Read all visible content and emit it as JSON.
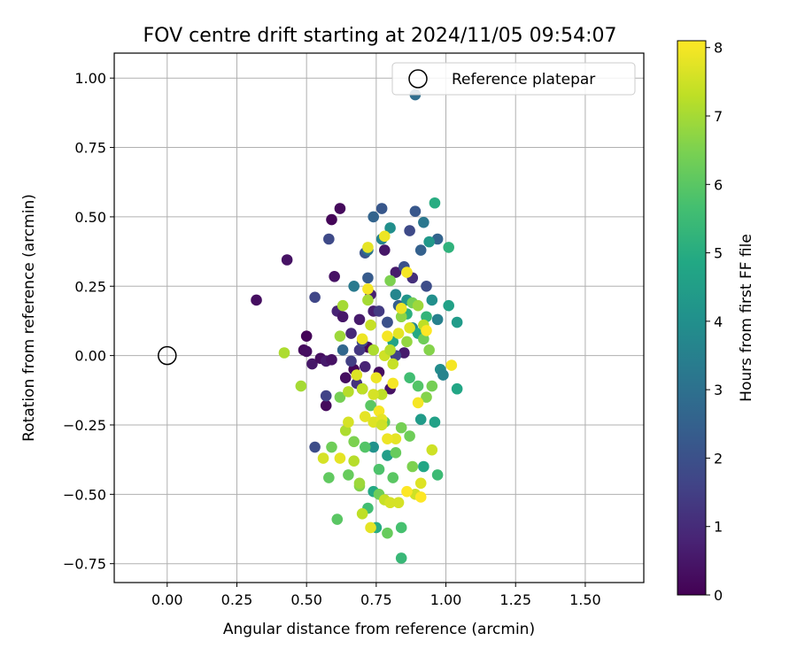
{
  "chart_data": {
    "type": "scatter",
    "title": "FOV centre drift starting at 2024/11/05 09:54:07",
    "xlabel": "Angular distance from reference (arcmin)",
    "ylabel": "Rotation from reference (arcmin)",
    "xlim": [
      -0.19,
      1.71
    ],
    "ylim": [
      -0.818,
      1.09
    ],
    "xticks": [
      "0.00",
      "0.25",
      "0.50",
      "0.75",
      "1.00",
      "1.25",
      "1.50"
    ],
    "xtick_values": [
      0,
      0.25,
      0.5,
      0.75,
      1.0,
      1.25,
      1.5
    ],
    "yticks": [
      "−0.75",
      "−0.50",
      "−0.25",
      "0.00",
      "0.25",
      "0.50",
      "0.75",
      "1.00"
    ],
    "ytick_values": [
      -0.75,
      -0.5,
      -0.25,
      0,
      0.25,
      0.5,
      0.75,
      1.0
    ],
    "grid": true,
    "legend": {
      "position": "top-right",
      "entries": [
        {
          "label": "Reference platepar",
          "marker": "open-circle",
          "x": 0,
          "y": 0
        }
      ]
    },
    "colorbar": {
      "label": "Hours from first FF file",
      "colormap": "viridis",
      "range": [
        0,
        8.1
      ],
      "ticks": [
        "0",
        "1",
        "2",
        "3",
        "4",
        "5",
        "6",
        "7",
        "8"
      ],
      "tick_values": [
        0,
        1,
        2,
        3,
        4,
        5,
        6,
        7,
        8
      ]
    },
    "points": [
      [
        0.32,
        0.2,
        0.3
      ],
      [
        0.43,
        0.345,
        0.4
      ],
      [
        0.49,
        0.02,
        0.2
      ],
      [
        0.5,
        0.07,
        0.1
      ],
      [
        0.5,
        0.015,
        0.3
      ],
      [
        0.52,
        -0.03,
        0.5
      ],
      [
        0.55,
        -0.01,
        0.3
      ],
      [
        0.57,
        -0.02,
        0.6
      ],
      [
        0.57,
        -0.18,
        0.2
      ],
      [
        0.59,
        -0.015,
        0.4
      ],
      [
        0.59,
        0.49,
        0.1
      ],
      [
        0.6,
        0.285,
        0.4
      ],
      [
        0.62,
        0.53,
        0.2
      ],
      [
        0.61,
        0.16,
        0.8
      ],
      [
        0.63,
        0.14,
        0.5
      ],
      [
        0.64,
        -0.08,
        0.3
      ],
      [
        0.67,
        -0.05,
        0.1
      ],
      [
        0.69,
        0.13,
        0.6
      ],
      [
        0.7,
        -0.12,
        0.4
      ],
      [
        0.72,
        0.03,
        0.2
      ],
      [
        0.78,
        0.38,
        0.5
      ],
      [
        0.82,
        0.3,
        0.6
      ],
      [
        0.74,
        0.16,
        0.7
      ],
      [
        0.66,
        0.08,
        0.9
      ],
      [
        0.68,
        -0.1,
        1.2
      ],
      [
        0.71,
        -0.04,
        0.8
      ],
      [
        0.76,
        -0.06,
        0.3
      ],
      [
        0.73,
        0.22,
        0.7
      ],
      [
        0.79,
        0.12,
        1.0
      ],
      [
        0.85,
        0.01,
        0.6
      ],
      [
        0.8,
        -0.12,
        0.4
      ],
      [
        0.88,
        0.28,
        1.1
      ],
      [
        0.53,
        0.21,
        1.7
      ],
      [
        0.57,
        -0.145,
        1.6
      ],
      [
        0.53,
        -0.33,
        1.9
      ],
      [
        0.58,
        0.42,
        1.8
      ],
      [
        0.66,
        -0.02,
        1.5
      ],
      [
        0.69,
        0.02,
        1.3
      ],
      [
        0.71,
        0.37,
        2.1
      ],
      [
        0.72,
        0.28,
        2.3
      ],
      [
        0.74,
        0.5,
        2.6
      ],
      [
        0.77,
        0.53,
        2.2
      ],
      [
        0.79,
        0.12,
        2.0
      ],
      [
        0.83,
        0.18,
        2.4
      ],
      [
        0.85,
        0.32,
        2.0
      ],
      [
        0.87,
        0.45,
        1.8
      ],
      [
        0.89,
        0.52,
        2.2
      ],
      [
        0.89,
        0.94,
        2.9
      ],
      [
        0.91,
        0.38,
        2.5
      ],
      [
        0.93,
        0.25,
        1.9
      ],
      [
        0.97,
        0.42,
        2.6
      ],
      [
        0.82,
        0.0,
        1.6
      ],
      [
        0.76,
        0.16,
        1.4
      ],
      [
        0.7,
        0.05,
        1.7
      ],
      [
        0.63,
        0.02,
        2.7
      ],
      [
        0.67,
        0.25,
        3.3
      ],
      [
        0.72,
        0.38,
        3.0
      ],
      [
        0.77,
        0.42,
        3.6
      ],
      [
        0.8,
        0.46,
        4.0
      ],
      [
        0.82,
        0.22,
        3.7
      ],
      [
        0.86,
        0.2,
        4.2
      ],
      [
        0.88,
        0.1,
        3.8
      ],
      [
        0.92,
        0.48,
        3.2
      ],
      [
        0.94,
        0.41,
        4.3
      ],
      [
        0.95,
        0.2,
        4.0
      ],
      [
        0.97,
        0.13,
        3.5
      ],
      [
        0.98,
        -0.05,
        3.9
      ],
      [
        0.99,
        -0.07,
        3.6
      ],
      [
        0.96,
        0.55,
        5.0
      ],
      [
        1.01,
        0.39,
        5.2
      ],
      [
        1.01,
        0.18,
        4.6
      ],
      [
        1.04,
        0.12,
        4.4
      ],
      [
        1.04,
        -0.12,
        4.8
      ],
      [
        0.74,
        -0.33,
        4.1
      ],
      [
        0.79,
        -0.36,
        4.5
      ],
      [
        0.81,
        0.05,
        4.7
      ],
      [
        0.86,
        0.15,
        5.1
      ],
      [
        0.9,
        0.08,
        4.9
      ],
      [
        0.93,
        0.14,
        5.3
      ],
      [
        0.91,
        -0.23,
        4.4
      ],
      [
        0.96,
        -0.24,
        4.6
      ],
      [
        0.97,
        -0.43,
        5.5
      ],
      [
        0.92,
        -0.4,
        4.8
      ],
      [
        0.87,
        -0.08,
        5.6
      ],
      [
        0.84,
        -0.62,
        5.7
      ],
      [
        0.84,
        -0.73,
        5.4
      ],
      [
        0.74,
        -0.49,
        4.9
      ],
      [
        0.72,
        -0.55,
        5.6
      ],
      [
        0.75,
        -0.62,
        5.0
      ],
      [
        0.76,
        -0.41,
        5.8
      ],
      [
        0.79,
        -0.64,
        6.2
      ],
      [
        0.61,
        -0.59,
        6.0
      ],
      [
        0.58,
        -0.44,
        6.1
      ],
      [
        0.59,
        -0.33,
        6.3
      ],
      [
        0.62,
        -0.15,
        6.4
      ],
      [
        0.65,
        -0.43,
        6.2
      ],
      [
        0.67,
        -0.31,
        6.5
      ],
      [
        0.69,
        -0.47,
        6.6
      ],
      [
        0.71,
        -0.33,
        5.9
      ],
      [
        0.73,
        -0.18,
        6.0
      ],
      [
        0.76,
        -0.5,
        6.3
      ],
      [
        0.78,
        -0.24,
        6.1
      ],
      [
        0.81,
        -0.44,
        6.0
      ],
      [
        0.82,
        -0.35,
        6.2
      ],
      [
        0.84,
        -0.26,
        6.4
      ],
      [
        0.87,
        -0.29,
        6.3
      ],
      [
        0.88,
        -0.4,
        6.5
      ],
      [
        0.9,
        -0.11,
        5.9
      ],
      [
        0.92,
        0.06,
        6.3
      ],
      [
        0.94,
        0.02,
        6.6
      ],
      [
        0.95,
        -0.11,
        6.4
      ],
      [
        0.8,
        0.27,
        6.5
      ],
      [
        0.84,
        0.14,
        6.7
      ],
      [
        0.86,
        0.05,
        6.8
      ],
      [
        0.88,
        0.19,
        6.4
      ],
      [
        0.9,
        0.18,
        6.9
      ],
      [
        0.93,
        -0.15,
        6.6
      ],
      [
        0.62,
        0.07,
        6.9
      ],
      [
        0.63,
        0.18,
        7.0
      ],
      [
        0.64,
        -0.27,
        7.1
      ],
      [
        0.65,
        -0.13,
        7.2
      ],
      [
        0.69,
        -0.46,
        6.9
      ],
      [
        0.7,
        -0.12,
        7.3
      ],
      [
        0.72,
        0.2,
        7.0
      ],
      [
        0.73,
        0.11,
        7.4
      ],
      [
        0.74,
        0.02,
        7.1
      ],
      [
        0.77,
        -0.14,
        7.3
      ],
      [
        0.78,
        0.0,
        7.5
      ],
      [
        0.8,
        0.02,
        7.2
      ],
      [
        0.81,
        -0.03,
        7.4
      ],
      [
        0.83,
        -0.53,
        7.6
      ],
      [
        0.89,
        -0.5,
        7.5
      ],
      [
        0.91,
        -0.46,
        7.7
      ],
      [
        0.92,
        0.11,
        7.3
      ],
      [
        0.48,
        -0.11,
        7.0
      ],
      [
        0.42,
        0.01,
        7.1
      ],
      [
        0.56,
        -0.37,
        7.6
      ],
      [
        0.62,
        -0.37,
        7.8
      ],
      [
        0.65,
        -0.24,
        7.6
      ],
      [
        0.67,
        -0.38,
        7.2
      ],
      [
        0.7,
        -0.57,
        7.3
      ],
      [
        0.73,
        -0.62,
        7.8
      ],
      [
        0.74,
        -0.24,
        7.7
      ],
      [
        0.75,
        -0.08,
        7.9
      ],
      [
        0.76,
        -0.2,
        8.0
      ],
      [
        0.77,
        -0.23,
        7.8
      ],
      [
        0.78,
        -0.52,
        7.4
      ],
      [
        0.8,
        -0.53,
        7.6
      ],
      [
        0.81,
        -0.1,
        8.0
      ],
      [
        0.82,
        -0.3,
        7.8
      ],
      [
        0.86,
        0.3,
        8.0
      ],
      [
        0.86,
        -0.49,
        8.1
      ],
      [
        0.9,
        -0.17,
        8.0
      ],
      [
        0.91,
        -0.51,
        8.1
      ],
      [
        0.95,
        -0.34,
        7.5
      ],
      [
        1.02,
        -0.035,
        8.0
      ],
      [
        0.78,
        0.43,
        7.9
      ],
      [
        0.72,
        0.39,
        7.8
      ],
      [
        0.72,
        0.24,
        8.0
      ],
      [
        0.7,
        0.06,
        7.9
      ],
      [
        0.68,
        -0.07,
        7.7
      ],
      [
        0.71,
        -0.22,
        7.8
      ],
      [
        0.74,
        -0.14,
        7.6
      ],
      [
        0.77,
        -0.25,
        7.5
      ],
      [
        0.79,
        -0.3,
        7.9
      ],
      [
        0.83,
        0.08,
        7.8
      ],
      [
        0.87,
        0.1,
        7.7
      ],
      [
        0.93,
        0.09,
        8.1
      ],
      [
        0.79,
        0.07,
        8.0
      ],
      [
        0.84,
        0.17,
        7.9
      ]
    ]
  }
}
